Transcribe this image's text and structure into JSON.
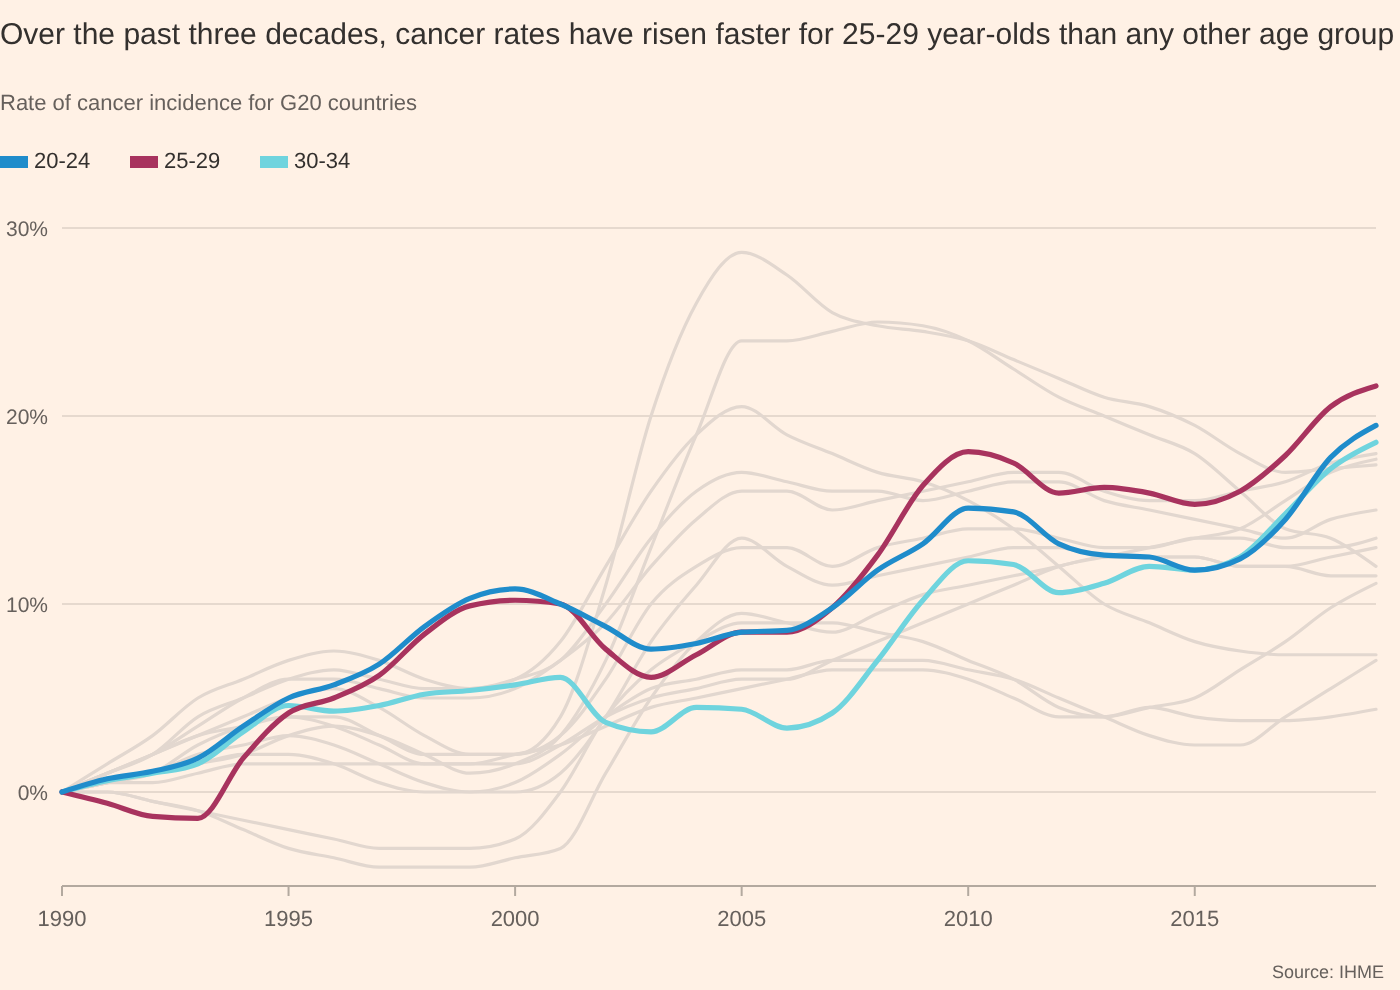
{
  "chart_data": {
    "type": "line",
    "title": "Over the past three decades, cancer rates have risen faster for 25-29 year-olds than any other age group",
    "subtitle": "Rate of cancer incidence for G20 countries",
    "annotations": [
      "Source: IHME"
    ],
    "x": [
      1990,
      1991,
      1992,
      1993,
      1994,
      1995,
      1996,
      1997,
      1998,
      1999,
      2000,
      2001,
      2002,
      2003,
      2004,
      2005,
      2006,
      2007,
      2008,
      2009,
      2010,
      2011,
      2012,
      2013,
      2014,
      2015,
      2016,
      2017,
      2018,
      2019
    ],
    "xlim": [
      1990,
      2019
    ],
    "xticks": [
      1990,
      1995,
      2000,
      2005,
      2010,
      2015
    ],
    "ylim": [
      -5,
      30
    ],
    "yticks": [
      {
        "value": 0,
        "label": "0%"
      },
      {
        "value": 10,
        "label": "10%"
      },
      {
        "value": 20,
        "label": "20%"
      },
      {
        "value": 30,
        "label": "30%"
      }
    ],
    "grid": "y",
    "legend": "top left",
    "line_style": "solid",
    "marker": "none",
    "series": [
      {
        "color": "#e2d7cf",
        "values": [
          0,
          1,
          2,
          3,
          4,
          5,
          5.5,
          4.5,
          3,
          2,
          2,
          4,
          11,
          20,
          26,
          28.7,
          27.5,
          25.5,
          24.8,
          24.5,
          24,
          23,
          22,
          21,
          20.5,
          19.5,
          18,
          17,
          17.2,
          17.4
        ]
      },
      {
        "color": "#e2d7cf",
        "values": [
          0,
          0.5,
          1,
          1.5,
          2,
          3,
          3.5,
          3,
          2,
          1,
          1.5,
          3,
          7,
          13,
          19,
          24,
          24,
          24.5,
          25,
          24.8,
          24,
          22.5,
          21,
          20,
          19,
          18,
          16,
          14,
          13.5,
          12
        ]
      },
      {
        "color": "#e2d7cf",
        "values": [
          0,
          1,
          2,
          4,
          5,
          6,
          6.5,
          6,
          5.5,
          5.5,
          6,
          8,
          12,
          16,
          19,
          20.5,
          19,
          18,
          17,
          16.5,
          15.5,
          14,
          12,
          10,
          9,
          8,
          7.5,
          7.3,
          7.3,
          7.3
        ]
      },
      {
        "color": "#e2d7cf",
        "values": [
          0,
          1.5,
          3,
          5,
          6,
          7,
          7.5,
          7,
          6,
          5.5,
          6,
          7,
          10,
          13.5,
          16,
          17,
          16.5,
          16,
          16,
          15.5,
          16,
          16.5,
          16.5,
          15.5,
          15,
          14.5,
          14,
          13.5,
          14.5,
          15
        ]
      },
      {
        "color": "#e2d7cf",
        "values": [
          0,
          1,
          2,
          3.5,
          5,
          6,
          6,
          5.5,
          5,
          5,
          5.5,
          7,
          9,
          12,
          14.5,
          16,
          16,
          15,
          15.5,
          16,
          16.5,
          17,
          17,
          16,
          15.5,
          15.5,
          16,
          16.5,
          17.5,
          18
        ]
      },
      {
        "color": "#e2d7cf",
        "values": [
          0,
          0.5,
          1,
          2.5,
          3.5,
          4,
          4,
          3,
          2,
          2,
          2,
          3,
          6,
          10,
          12,
          13,
          13,
          12,
          13,
          13.5,
          14,
          14,
          13.5,
          13,
          13,
          13.5,
          13.5,
          13,
          13,
          13.5
        ]
      },
      {
        "color": "#e2d7cf",
        "values": [
          0,
          0.5,
          1,
          2,
          2.5,
          3,
          2.5,
          1.5,
          0.5,
          0,
          0,
          1,
          4,
          8,
          11,
          13.5,
          12,
          11,
          11.5,
          12,
          12.5,
          13,
          13,
          12.5,
          12.5,
          12.5,
          12,
          12,
          11.5,
          11.5
        ]
      },
      {
        "color": "#e2d7cf",
        "values": [
          0,
          0,
          -0.5,
          -1,
          -2,
          -3,
          -3.5,
          -4,
          -4,
          -4,
          -3.5,
          -3,
          1,
          5,
          8,
          9.5,
          9,
          8.5,
          9.5,
          10.5,
          11,
          11.5,
          12,
          12.5,
          12.5,
          12.5,
          12,
          12,
          12.5,
          13
        ]
      },
      {
        "color": "#e2d7cf",
        "values": [
          0,
          0.5,
          1,
          1.5,
          2,
          2,
          1.5,
          0.5,
          0,
          0,
          0.5,
          2,
          4,
          5.5,
          6,
          6.5,
          6.5,
          7,
          7,
          7,
          6.5,
          6,
          5,
          4,
          3,
          2.5,
          2.5,
          4,
          5.5,
          7
        ]
      },
      {
        "color": "#e2d7cf",
        "values": [
          0,
          0.5,
          0.5,
          1,
          1.5,
          1.5,
          1.5,
          1.5,
          1.5,
          1.5,
          2,
          2.5,
          3.5,
          4.5,
          5,
          5.5,
          6,
          6.5,
          6.5,
          6.5,
          6,
          5,
          4,
          4,
          4.5,
          4,
          3.8,
          3.8,
          4,
          4.4
        ]
      },
      {
        "color": "#e2d7cf",
        "values": [
          0,
          0,
          -0.5,
          -1,
          -1.5,
          -2,
          -2.5,
          -3,
          -3,
          -3,
          -2.5,
          0,
          4,
          6.5,
          8,
          9,
          9,
          9,
          8.5,
          8,
          7,
          6,
          4.5,
          4,
          4.5,
          5,
          6.5,
          8,
          9.8,
          11.1
        ]
      },
      {
        "color": "#e2d7cf",
        "values": [
          0,
          1,
          2,
          3,
          3.5,
          4,
          3.5,
          2.5,
          1.5,
          1.5,
          1.5,
          2.5,
          4,
          5,
          5.5,
          6,
          6,
          7,
          8,
          9,
          10,
          11,
          12,
          12.5,
          13,
          13.5,
          14,
          15.5,
          17,
          17.7
        ]
      },
      {
        "name": "30-34",
        "color": "#6fd4de",
        "values": [
          0,
          0.6,
          1,
          1.5,
          3.2,
          4.6,
          4.3,
          4.6,
          5.2,
          5.4,
          5.7,
          6.1,
          3.7,
          3.2,
          4.5,
          4.4,
          3.4,
          4.2,
          7.0,
          10.2,
          12.3,
          12.1,
          10.6,
          11.1,
          12,
          11.8,
          12.5,
          14.8,
          17.2,
          18.6
        ]
      },
      {
        "name": "25-29",
        "color": "#a8335e",
        "values": [
          0,
          -0.6,
          -1.3,
          -1.4,
          1.8,
          4.2,
          5,
          6.2,
          8.4,
          9.9,
          10.2,
          10,
          7.6,
          6.1,
          7.3,
          8.5,
          8.5,
          9.8,
          12.6,
          16.3,
          18.1,
          17.5,
          15.9,
          16.2,
          15.9,
          15.3,
          16,
          17.9,
          20.5,
          21.6
        ]
      },
      {
        "name": "20-24",
        "color": "#1f8ccb",
        "values": [
          0,
          0.7,
          1.1,
          1.8,
          3.5,
          5,
          5.7,
          6.8,
          8.8,
          10.3,
          10.8,
          10,
          8.8,
          7.6,
          7.9,
          8.5,
          8.6,
          9.8,
          11.8,
          13.2,
          15.1,
          14.9,
          13.2,
          12.6,
          12.5,
          11.8,
          12.4,
          14.5,
          17.8,
          19.5
        ]
      }
    ]
  }
}
